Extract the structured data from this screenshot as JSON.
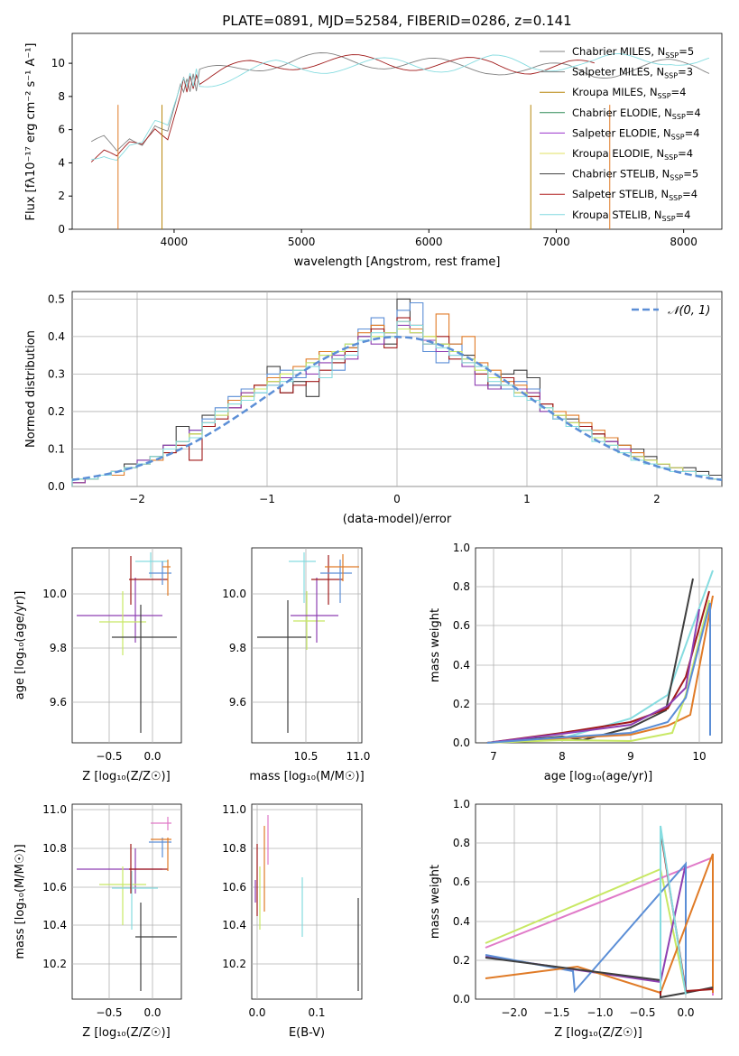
{
  "figure": {
    "title": "PLATE=0891, MJD=52584, FIBERID=0286, z=0.141"
  },
  "panel_spectrum": {
    "xlabel": "wavelength [Angstrom, rest frame]",
    "ylabel": "Flux [fλ10⁻¹⁷ erg cm⁻² s⁻¹ A⁻¹]",
    "legend": [
      {
        "label": "Chabrier MILES, N",
        "sub": "SSP",
        "tail": "=5",
        "color": "#808080"
      },
      {
        "label": "Salpeter MILES, N",
        "sub": "SSP",
        "tail": "=3",
        "color": "#808080"
      },
      {
        "label": "Kroupa MILES, N",
        "sub": "SSP",
        "tail": "=4",
        "color": "#b8860b"
      },
      {
        "label": "Chabrier ELODIE, N",
        "sub": "SSP",
        "tail": "=4",
        "color": "#2e8b57"
      },
      {
        "label": "Salpeter ELODIE, N",
        "sub": "SSP",
        "tail": "=4",
        "color": "#9932cc"
      },
      {
        "label": "Kroupa ELODIE, N",
        "sub": "SSP",
        "tail": "=4",
        "color": "#e0e060"
      },
      {
        "label": "Chabrier STELIB, N",
        "sub": "SSP",
        "tail": "=5",
        "color": "#404040"
      },
      {
        "label": "Salpeter STELIB, N",
        "sub": "SSP",
        "tail": "=4",
        "color": "#b22222"
      },
      {
        "label": "Kroupa STELIB, N",
        "sub": "SSP",
        "tail": "=4",
        "color": "#80d8e0"
      }
    ]
  },
  "panel_hist": {
    "xlabel": "(data-model)/error",
    "ylabel": "Normed distribution",
    "legend_label": "𝒩(0, 1)"
  },
  "panel_age_Z": {
    "xlabel": "Z [log₁₀(Z/Z☉)]",
    "ylabel": "age  [log₁₀(age/yr)]"
  },
  "panel_age_mass": {
    "xlabel": "mass [log₁₀(M/M☉)]"
  },
  "panel_mw_age": {
    "xlabel": "age  [log₁₀(age/yr)]",
    "ylabel": "mass weight"
  },
  "panel_mass_Z": {
    "xlabel": "Z [log₁₀(Z/Z☉)]",
    "ylabel": "mass [log₁₀(M/M☉)]"
  },
  "panel_mass_ebv": {
    "xlabel": "E(B-V)"
  },
  "panel_mw_Z": {
    "xlabel": "Z [log₁₀(Z/Z☉)]",
    "ylabel": "mass weight"
  },
  "colors": {
    "blue": "#5b8ed6",
    "orange": "#e07b27",
    "purple": "#8e3fb2",
    "lime": "#c8e864",
    "dark": "#3f3f3f",
    "red": "#a01a1a",
    "cyan": "#86dce0",
    "pink": "#e07ac8",
    "teal": "#2e8b57"
  },
  "chart_data": [
    {
      "type": "line",
      "panel": "spectrum",
      "x_ticks": [
        4000,
        5000,
        6000,
        7000,
        8000
      ],
      "y_ticks": [
        0,
        2,
        4,
        6,
        8,
        10
      ],
      "xlim": [
        3200,
        8300
      ],
      "ylim": [
        0,
        11.8
      ],
      "series": [
        {
          "color": "#808080",
          "x": [
            3350,
            3450,
            3550,
            3650,
            3750,
            3850,
            3950,
            4050,
            4200,
            4400,
            4600,
            4800,
            5000,
            5300,
            5600,
            5900,
            6200,
            6500,
            6800,
            7100,
            7300,
            7500,
            7700,
            7900,
            8100,
            8200
          ],
          "y": [
            4.8,
            5.2,
            4.5,
            5.5,
            5.3,
            6.5,
            6.0,
            8.5,
            9.0,
            9.3,
            9.6,
            9.8,
            9.9,
            9.9,
            9.9,
            9.8,
            9.7,
            9.8,
            9.6,
            9.8,
            9.7,
            9.9,
            10.0,
            10.1,
            10.1,
            10.0
          ]
        },
        {
          "color": "#a01a1a",
          "x": [
            3350,
            3450,
            3550,
            3650,
            3750,
            3850,
            3950,
            4050,
            4200,
            4400,
            4600,
            4800,
            5000,
            5300,
            5600,
            5900,
            6200,
            6500,
            6800,
            7100,
            7300
          ],
          "y": [
            4.4,
            4.8,
            4.2,
            5.0,
            5.0,
            6.2,
            5.8,
            8.6,
            9.0,
            9.4,
            9.7,
            9.8,
            9.9,
            9.8,
            9.8,
            9.7,
            9.6,
            9.7,
            9.6,
            9.7,
            9.6
          ]
        },
        {
          "color": "#86dce0",
          "x": [
            3350,
            3450,
            3550,
            3650,
            3750,
            3850,
            3950,
            4050,
            4200,
            4400,
            4600,
            4800,
            5000,
            5300,
            5600,
            5900,
            6200,
            6500,
            6800,
            7100,
            7300,
            7500,
            7700,
            7900,
            8100,
            8200
          ],
          "y": [
            4.9,
            5.1,
            4.7,
            5.3,
            5.2,
            6.4,
            6.2,
            8.8,
            9.2,
            9.4,
            9.6,
            9.9,
            9.8,
            9.9,
            9.8,
            9.7,
            9.7,
            9.8,
            9.5,
            9.8,
            9.7,
            9.9,
            10.0,
            10.2,
            10.0,
            10.0
          ]
        }
      ]
    },
    {
      "type": "bar",
      "panel": "hist",
      "x_ticks": [
        -2,
        -1,
        0,
        1,
        2
      ],
      "y_ticks": [
        0.0,
        0.1,
        0.2,
        0.3,
        0.4,
        0.5
      ],
      "xlim": [
        -2.5,
        2.5
      ],
      "ylim": [
        0,
        0.52
      ],
      "bin_edges": [
        -2.5,
        -2.4,
        -2.3,
        -2.2,
        -2.1,
        -2.0,
        -1.9,
        -1.8,
        -1.7,
        -1.6,
        -1.5,
        -1.4,
        -1.3,
        -1.2,
        -1.1,
        -1.0,
        -0.9,
        -0.8,
        -0.7,
        -0.6,
        -0.5,
        -0.4,
        -0.3,
        -0.2,
        -0.1,
        0.0,
        0.1,
        0.2,
        0.3,
        0.4,
        0.5,
        0.6,
        0.7,
        0.8,
        0.9,
        1.0,
        1.1,
        1.2,
        1.3,
        1.4,
        1.5,
        1.6,
        1.7,
        1.8,
        1.9,
        2.0,
        2.1,
        2.2,
        2.3,
        2.4,
        2.5
      ],
      "series": [
        {
          "color": "#3f3f3f",
          "values": [
            0.01,
            0.02,
            0.03,
            0.04,
            0.06,
            0.07,
            0.08,
            0.11,
            0.16,
            0.14,
            0.19,
            0.2,
            0.23,
            0.24,
            0.26,
            0.32,
            0.25,
            0.28,
            0.24,
            0.36,
            0.33,
            0.37,
            0.4,
            0.43,
            0.38,
            0.5,
            0.42,
            0.39,
            0.38,
            0.36,
            0.35,
            0.3,
            0.27,
            0.3,
            0.31,
            0.29,
            0.2,
            0.19,
            0.18,
            0.16,
            0.14,
            0.13,
            0.11,
            0.1,
            0.08,
            0.06,
            0.05,
            0.05,
            0.04,
            0.03
          ]
        },
        {
          "color": "#5b8ed6",
          "values": [
            0.02,
            0.02,
            0.03,
            0.04,
            0.05,
            0.06,
            0.08,
            0.1,
            0.12,
            0.15,
            0.18,
            0.21,
            0.24,
            0.26,
            0.25,
            0.3,
            0.31,
            0.29,
            0.33,
            0.35,
            0.31,
            0.38,
            0.42,
            0.45,
            0.41,
            0.47,
            0.49,
            0.36,
            0.33,
            0.38,
            0.34,
            0.32,
            0.27,
            0.26,
            0.28,
            0.26,
            0.22,
            0.18,
            0.17,
            0.15,
            0.13,
            0.12,
            0.1,
            0.09,
            0.07,
            0.06,
            0.05,
            0.04,
            0.03,
            0.02
          ]
        },
        {
          "color": "#e07b27",
          "values": [
            0.01,
            0.02,
            0.03,
            0.03,
            0.05,
            0.06,
            0.07,
            0.09,
            0.12,
            0.14,
            0.17,
            0.2,
            0.23,
            0.25,
            0.27,
            0.29,
            0.3,
            0.32,
            0.34,
            0.36,
            0.34,
            0.37,
            0.41,
            0.43,
            0.4,
            0.44,
            0.42,
            0.4,
            0.46,
            0.38,
            0.4,
            0.33,
            0.31,
            0.28,
            0.27,
            0.25,
            0.22,
            0.2,
            0.19,
            0.17,
            0.15,
            0.13,
            0.11,
            0.09,
            0.07,
            0.06,
            0.05,
            0.04,
            0.03,
            0.02
          ]
        },
        {
          "color": "#a01a1a",
          "values": [
            0.02,
            0.02,
            0.03,
            0.04,
            0.05,
            0.06,
            0.08,
            0.09,
            0.11,
            0.07,
            0.16,
            0.18,
            0.21,
            0.24,
            0.27,
            0.28,
            0.25,
            0.27,
            0.28,
            0.31,
            0.33,
            0.36,
            0.39,
            0.42,
            0.37,
            0.45,
            0.43,
            0.38,
            0.4,
            0.34,
            0.33,
            0.3,
            0.26,
            0.29,
            0.25,
            0.24,
            0.22,
            0.19,
            0.17,
            0.16,
            0.14,
            0.12,
            0.1,
            0.08,
            0.07,
            0.06,
            0.05,
            0.04,
            0.03,
            0.02
          ]
        },
        {
          "color": "#8e3fb2",
          "values": [
            0.01,
            0.02,
            0.03,
            0.04,
            0.05,
            0.07,
            0.08,
            0.11,
            0.12,
            0.15,
            0.17,
            0.19,
            0.21,
            0.25,
            0.26,
            0.27,
            0.29,
            0.31,
            0.3,
            0.33,
            0.35,
            0.34,
            0.4,
            0.38,
            0.41,
            0.43,
            0.41,
            0.39,
            0.36,
            0.35,
            0.32,
            0.27,
            0.26,
            0.27,
            0.26,
            0.25,
            0.2,
            0.18,
            0.17,
            0.15,
            0.13,
            0.12,
            0.1,
            0.08,
            0.07,
            0.06,
            0.05,
            0.04,
            0.03,
            0.02
          ]
        },
        {
          "color": "#c8e864",
          "values": [
            0.02,
            0.02,
            0.03,
            0.04,
            0.05,
            0.06,
            0.08,
            0.1,
            0.12,
            0.14,
            0.17,
            0.19,
            0.22,
            0.24,
            0.26,
            0.28,
            0.3,
            0.31,
            0.33,
            0.35,
            0.36,
            0.38,
            0.39,
            0.4,
            0.41,
            0.42,
            0.41,
            0.4,
            0.38,
            0.36,
            0.34,
            0.31,
            0.29,
            0.27,
            0.25,
            0.23,
            0.21,
            0.19,
            0.17,
            0.15,
            0.13,
            0.11,
            0.09,
            0.08,
            0.07,
            0.06,
            0.05,
            0.04,
            0.03,
            0.02
          ]
        },
        {
          "color": "#86dce0",
          "values": [
            0.02,
            0.02,
            0.03,
            0.04,
            0.05,
            0.06,
            0.08,
            0.1,
            0.12,
            0.13,
            0.17,
            0.2,
            0.22,
            0.23,
            0.25,
            0.27,
            0.28,
            0.31,
            0.32,
            0.29,
            0.34,
            0.35,
            0.39,
            0.41,
            0.4,
            0.44,
            0.43,
            0.38,
            0.37,
            0.35,
            0.33,
            0.32,
            0.28,
            0.27,
            0.24,
            0.23,
            0.21,
            0.18,
            0.16,
            0.15,
            0.12,
            0.11,
            0.09,
            0.07,
            0.06,
            0.05,
            0.04,
            0.04,
            0.03,
            0.02
          ]
        }
      ]
    }
  ]
}
